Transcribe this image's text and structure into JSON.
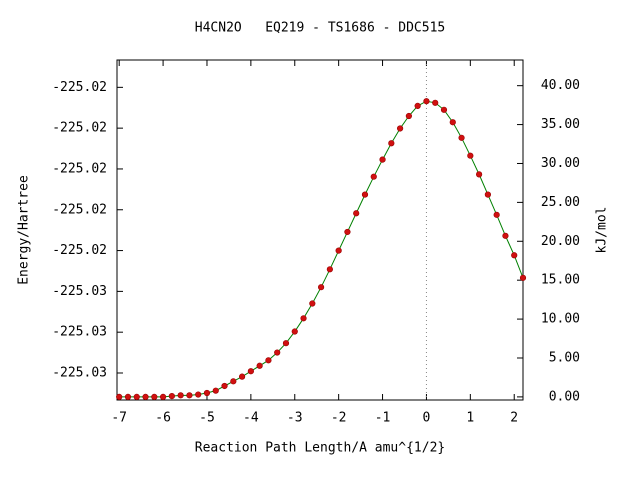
{
  "chart_data": {
    "type": "line",
    "title": "H4CN2O   EQ219 - TS1686 - DDC515",
    "xlabel": "Reaction Path Length/A amu^{1/2}",
    "ylabel": "Energy/Hartree",
    "y2label": "kJ/mol",
    "x": [
      -7,
      -6.8,
      -6.6,
      -6.4,
      -6.2,
      -6,
      -5.8,
      -5.6,
      -5.4,
      -5.2,
      -5,
      -4.8,
      -4.6,
      -4.4,
      -4.2,
      -4,
      -3.8,
      -3.6,
      -3.4,
      -3.2,
      -3,
      -2.8,
      -2.6,
      -2.4,
      -2.2,
      -2,
      -1.8,
      -1.6,
      -1.4,
      -1.2,
      -1,
      -0.8,
      -0.6,
      -0.4,
      -0.2,
      0,
      0.2,
      0.4,
      0.6,
      0.8,
      1,
      1.2,
      1.4,
      1.6,
      1.8,
      2,
      2.2
    ],
    "series": [
      {
        "axis": "y2",
        "color": "#008000",
        "marker_color": "#d01010",
        "values": [
          0,
          0,
          0,
          0,
          0,
          0,
          0.1,
          0.2,
          0.2,
          0.3,
          0.5,
          0.8,
          1.4,
          2.0,
          2.6,
          3.3,
          4.0,
          4.7,
          5.7,
          6.9,
          8.4,
          10.1,
          12.0,
          14.1,
          16.4,
          18.8,
          21.2,
          23.6,
          26.0,
          28.3,
          30.5,
          32.6,
          34.5,
          36.1,
          37.4,
          38.0,
          37.8,
          36.9,
          35.3,
          33.3,
          31.0,
          28.6,
          26.0,
          23.4,
          20.7,
          18.2,
          15.3
        ]
      }
    ],
    "vline_x": 0,
    "xlim": [
      -7.05,
      2.2
    ],
    "xticks": [
      -7,
      -6,
      -5,
      -4,
      -3,
      -2,
      -1,
      0,
      1,
      2
    ],
    "ylim": [
      -225.030324,
      -225.01366
    ],
    "yticks": [
      {
        "value": -225.029,
        "label": "-225.03"
      },
      {
        "value": -225.027,
        "label": "-225.03"
      },
      {
        "value": -225.025,
        "label": "-225.03"
      },
      {
        "value": -225.023,
        "label": "-225.02"
      },
      {
        "value": -225.021,
        "label": "-225.02"
      },
      {
        "value": -225.019,
        "label": "-225.02"
      },
      {
        "value": -225.017,
        "label": "-225.02"
      },
      {
        "value": -225.015,
        "label": "-225.02"
      }
    ],
    "y2lim": [
      -0.4,
      43.3
    ],
    "y2ticks": [
      {
        "value": 0,
        "label": "0.00"
      },
      {
        "value": 5,
        "label": "5.00"
      },
      {
        "value": 10,
        "label": "10.00"
      },
      {
        "value": 15,
        "label": "15.00"
      },
      {
        "value": 20,
        "label": "20.00"
      },
      {
        "value": 25,
        "label": "25.00"
      },
      {
        "value": 30,
        "label": "30.00"
      },
      {
        "value": 35,
        "label": "35.00"
      },
      {
        "value": 40,
        "label": "40.00"
      }
    ]
  }
}
